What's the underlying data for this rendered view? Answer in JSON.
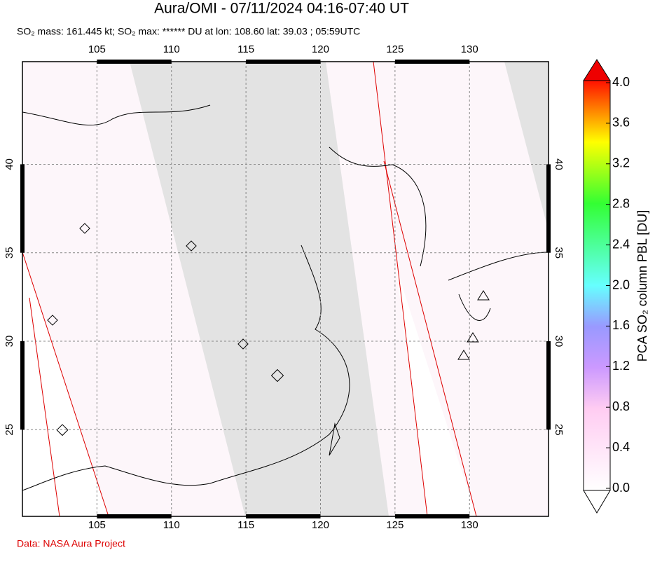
{
  "header": {
    "title": "Aura/OMI - 07/11/2024 04:16-07:40 UT",
    "subtitle": "SO₂ mass: 161.445 kt; SO₂ max: ****** DU at lon: 108.60 lat: 39.03 ; 05:59UTC"
  },
  "map": {
    "xlim": [
      100,
      135.3
    ],
    "ylim": [
      20.1,
      45.8
    ],
    "xticks": [
      105,
      110,
      115,
      120,
      125,
      130
    ],
    "yticks": [
      25,
      30,
      35,
      40
    ],
    "grid": true
  },
  "colorbar": {
    "label": "PCA SO₂ column PBL [DU]",
    "lim": [
      0,
      4
    ],
    "ticks": [
      {
        "value": 0,
        "label": "0.0"
      },
      {
        "value": 0.4,
        "label": "0.4"
      },
      {
        "value": 0.8,
        "label": "0.8"
      },
      {
        "value": 1.2,
        "label": "1.2"
      },
      {
        "value": 1.6,
        "label": "1.6"
      },
      {
        "value": 2,
        "label": "2.0"
      },
      {
        "value": 2.4,
        "label": "2.4"
      },
      {
        "value": 2.8,
        "label": "2.8"
      },
      {
        "value": 3.2,
        "label": "3.2"
      },
      {
        "value": 3.6,
        "label": "3.6"
      },
      {
        "value": 4,
        "label": "4.0"
      }
    ]
  },
  "footer": {
    "credit": "Data: NASA Aura Project"
  }
}
